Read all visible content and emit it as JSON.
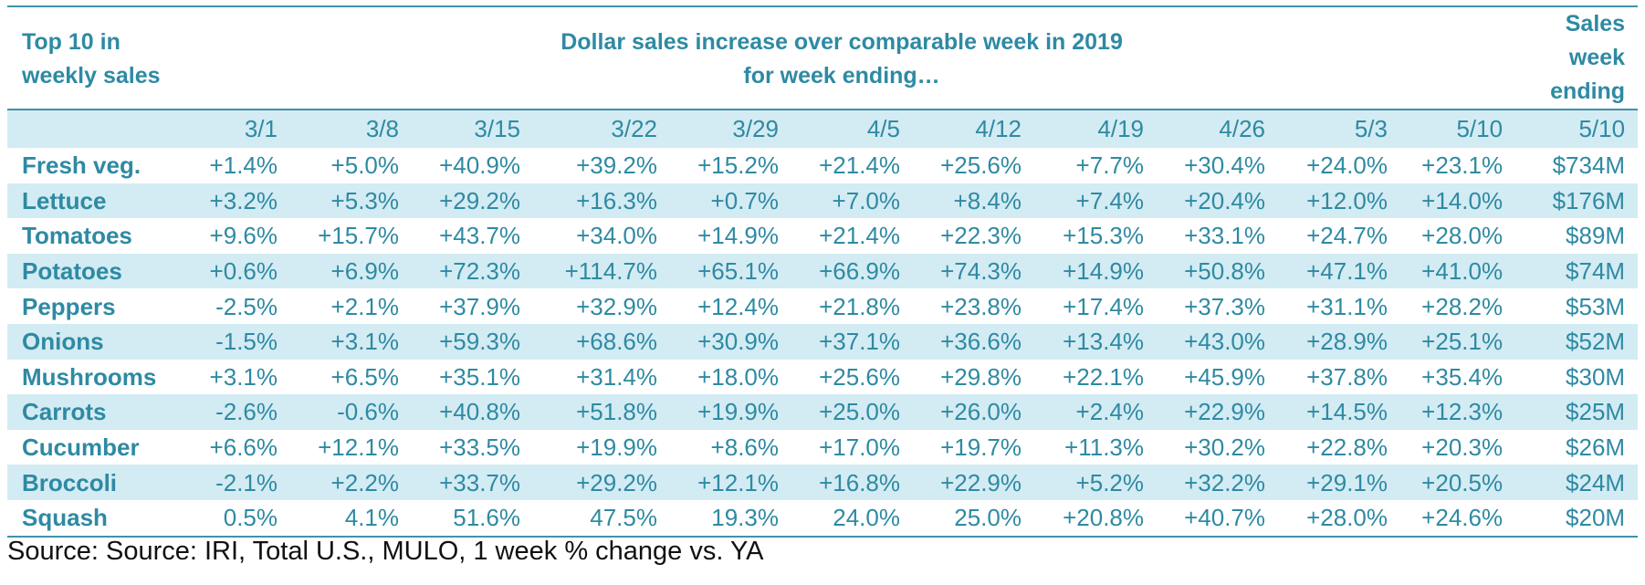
{
  "header": {
    "corner_line1": "Top 10 in",
    "corner_line2": "weekly sales",
    "span_line1": "Dollar sales increase over comparable week in 2019",
    "span_line2": "for week ending…",
    "sales_line1": "Sales",
    "sales_line2": "week",
    "sales_line3": "ending"
  },
  "weeks": [
    "3/1",
    "3/8",
    "3/15",
    "3/22",
    "3/29",
    "4/5",
    "4/12",
    "4/19",
    "4/26",
    "5/3",
    "5/10",
    "5/10"
  ],
  "rows": [
    {
      "label": "Fresh veg.",
      "values": [
        "+1.4%",
        "+5.0%",
        "+40.9%",
        "+39.2%",
        "+15.2%",
        "+21.4%",
        "+25.6%",
        "+7.7%",
        "+30.4%",
        "+24.0%",
        "+23.1%",
        "$734M"
      ]
    },
    {
      "label": "Lettuce",
      "values": [
        "+3.2%",
        "+5.3%",
        "+29.2%",
        "+16.3%",
        "+0.7%",
        "+7.0%",
        "+8.4%",
        "+7.4%",
        "+20.4%",
        "+12.0%",
        "+14.0%",
        "$176M"
      ]
    },
    {
      "label": "Tomatoes",
      "values": [
        "+9.6%",
        "+15.7%",
        "+43.7%",
        "+34.0%",
        "+14.9%",
        "+21.4%",
        "+22.3%",
        "+15.3%",
        "+33.1%",
        "+24.7%",
        "+28.0%",
        "$89M"
      ]
    },
    {
      "label": "Potatoes",
      "values": [
        "+0.6%",
        "+6.9%",
        "+72.3%",
        "+114.7%",
        "+65.1%",
        "+66.9%",
        "+74.3%",
        "+14.9%",
        "+50.8%",
        "+47.1%",
        "+41.0%",
        "$74M"
      ]
    },
    {
      "label": "Peppers",
      "values": [
        "-2.5%",
        "+2.1%",
        "+37.9%",
        "+32.9%",
        "+12.4%",
        "+21.8%",
        "+23.8%",
        "+17.4%",
        "+37.3%",
        "+31.1%",
        "+28.2%",
        "$53M"
      ]
    },
    {
      "label": "Onions",
      "values": [
        "-1.5%",
        "+3.1%",
        "+59.3%",
        "+68.6%",
        "+30.9%",
        "+37.1%",
        "+36.6%",
        "+13.4%",
        "+43.0%",
        "+28.9%",
        "+25.1%",
        "$52M"
      ]
    },
    {
      "label": "Mushrooms",
      "values": [
        "+3.1%",
        "+6.5%",
        "+35.1%",
        "+31.4%",
        "+18.0%",
        "+25.6%",
        "+29.8%",
        "+22.1%",
        "+45.9%",
        "+37.8%",
        "+35.4%",
        "$30M"
      ]
    },
    {
      "label": "Carrots",
      "values": [
        "-2.6%",
        "-0.6%",
        "+40.8%",
        "+51.8%",
        "+19.9%",
        "+25.0%",
        "+26.0%",
        "+2.4%",
        "+22.9%",
        "+14.5%",
        "+12.3%",
        "$25M"
      ]
    },
    {
      "label": "Cucumber",
      "values": [
        "+6.6%",
        "+12.1%",
        "+33.5%",
        "+19.9%",
        "+8.6%",
        "+17.0%",
        "+19.7%",
        "+11.3%",
        "+30.2%",
        "+22.8%",
        "+20.3%",
        "$26M"
      ]
    },
    {
      "label": "Broccoli",
      "values": [
        "-2.1%",
        "+2.2%",
        "+33.7%",
        "+29.2%",
        "+12.1%",
        "+16.8%",
        "+22.9%",
        "+5.2%",
        "+32.2%",
        "+29.1%",
        "+20.5%",
        "$24M"
      ]
    },
    {
      "label": "Squash",
      "values": [
        "0.5%",
        "4.1%",
        "51.6%",
        "47.5%",
        "19.3%",
        "24.0%",
        "25.0%",
        "+20.8%",
        "+40.7%",
        "+28.0%",
        "+24.6%",
        "$20M"
      ]
    }
  ],
  "source": "Source: Source: IRI, Total U.S., MULO, 1 week % change vs. YA",
  "colors": {
    "text": "#2e8aa3",
    "shade": "#d3ebf3",
    "rule": "#3f93ad"
  }
}
